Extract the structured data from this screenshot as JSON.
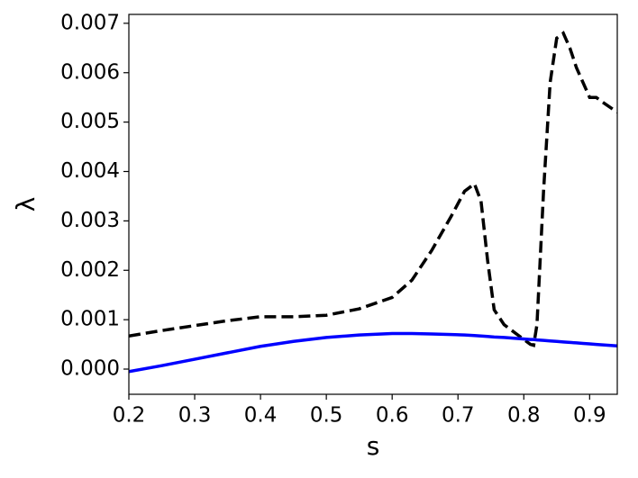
{
  "chart_data": {
    "type": "line",
    "xlabel": "s",
    "ylabel": "λ",
    "x": [
      0.2,
      0.25,
      0.3,
      0.35,
      0.4,
      0.45,
      0.5,
      0.55,
      0.6,
      0.63,
      0.66,
      0.69,
      0.71,
      0.725,
      0.735,
      0.745,
      0.755,
      0.77,
      0.79,
      0.81,
      0.815,
      0.82,
      0.83,
      0.84,
      0.85,
      0.86,
      0.87,
      0.88,
      0.89,
      0.9,
      0.91,
      0.92,
      0.942
    ],
    "series": [
      {
        "color": "#000000",
        "linestyle": "dashed",
        "values": [
          0.00067,
          0.00078,
          0.00088,
          0.00098,
          0.00106,
          0.00106,
          0.00109,
          0.00122,
          0.00145,
          0.0018,
          0.0024,
          0.0031,
          0.0036,
          0.00375,
          0.0034,
          0.0022,
          0.0012,
          0.0009,
          0.0007,
          0.0005,
          0.00048,
          0.0009,
          0.0036,
          0.0058,
          0.0067,
          0.0068,
          0.0065,
          0.0061,
          0.0058,
          0.0055,
          0.0055,
          0.0054,
          0.0052
        ]
      },
      {
        "color": "#0000ff",
        "linestyle": "solid",
        "values": [
          -5e-05,
          7e-05,
          0.0002,
          0.00033,
          0.00046,
          0.00056,
          0.00064,
          0.00069,
          0.00072,
          0.00072,
          0.00071,
          0.0007,
          0.00069,
          0.00068,
          0.00067,
          0.00066,
          0.00065,
          0.00064,
          0.00062,
          0.0006,
          0.0006,
          0.00059,
          0.00058,
          0.00057,
          0.00056,
          0.00055,
          0.00054,
          0.00053,
          0.00052,
          0.00051,
          0.0005,
          0.00049,
          0.00047
        ]
      }
    ],
    "xlim": [
      0.2,
      0.942
    ],
    "ylim": [
      -0.00051,
      0.00718
    ],
    "xticks": [
      0.2,
      0.3,
      0.4,
      0.5,
      0.6,
      0.7,
      0.8,
      0.9
    ],
    "yticks": [
      {
        "value": 0,
        "label": "0.000"
      },
      0.001,
      0.002,
      0.003,
      0.004,
      0.005,
      0.006,
      0.007
    ]
  }
}
